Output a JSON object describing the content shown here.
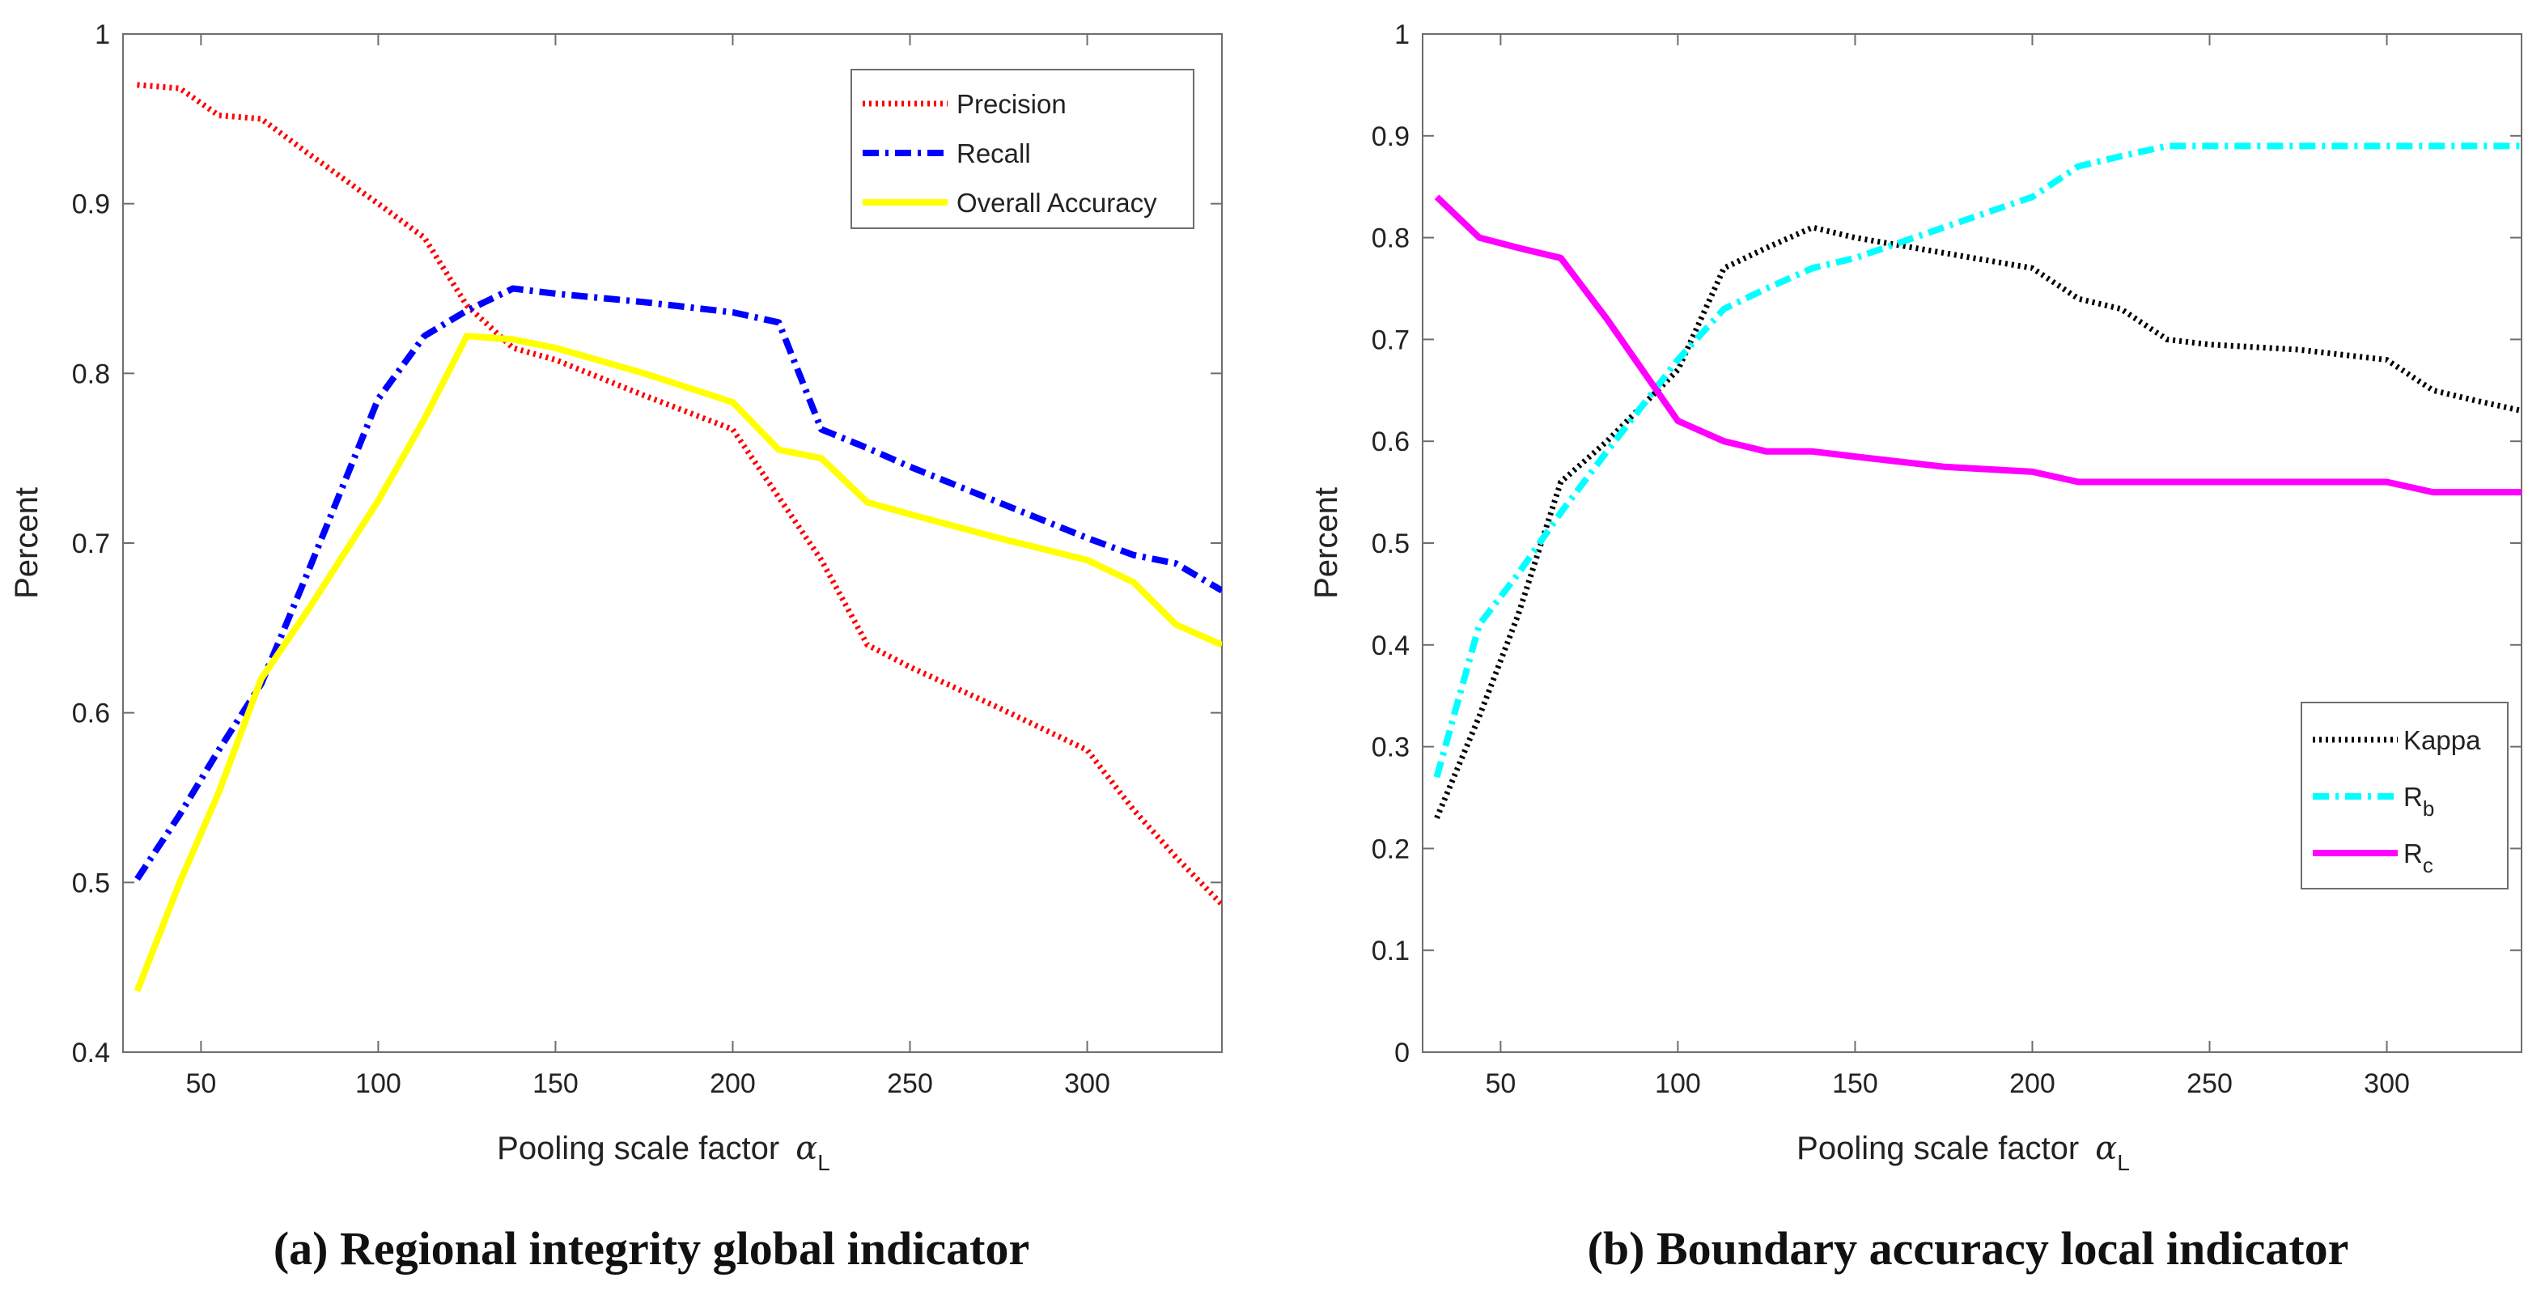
{
  "chart_data": [
    {
      "type": "line",
      "caption": "(a) Regional integrity global indicator",
      "xlabel": "Pooling scale factor",
      "xlabel_symbol": "α",
      "xlabel_sub": "L",
      "ylabel": "Percent",
      "xlim": [
        28,
        338
      ],
      "ylim": [
        0.4,
        1.0
      ],
      "xticks": [
        50,
        100,
        150,
        200,
        250,
        300
      ],
      "xtick_labels": [
        "50",
        "100",
        "150",
        "200",
        "250",
        "300"
      ],
      "yticks": [
        0.4,
        0.5,
        0.6,
        0.7,
        0.8,
        0.9,
        1.0
      ],
      "ytick_labels": [
        "0.4",
        "0.5",
        "0.6",
        "0.7",
        "0.8",
        "0.9",
        "1"
      ],
      "legend_position": "top-right",
      "series": [
        {
          "name": "Precision",
          "name_sub": "",
          "color": "#ff0000",
          "style": "dotted",
          "x": [
            32,
            44,
            55,
            67,
            80,
            100,
            113,
            125,
            138,
            150,
            175,
            200,
            213,
            225,
            238,
            250,
            275,
            300,
            313,
            325,
            338
          ],
          "y": [
            0.97,
            0.968,
            0.952,
            0.95,
            0.93,
            0.9,
            0.88,
            0.84,
            0.815,
            0.808,
            0.787,
            0.767,
            0.727,
            0.69,
            0.64,
            0.627,
            0.603,
            0.578,
            0.543,
            0.515,
            0.487
          ]
        },
        {
          "name": "Recall",
          "name_sub": "",
          "color": "#0000ff",
          "style": "dashdot",
          "x": [
            32,
            44,
            55,
            67,
            80,
            100,
            113,
            125,
            138,
            150,
            175,
            200,
            213,
            225,
            238,
            250,
            275,
            300,
            313,
            325,
            338
          ],
          "y": [
            0.502,
            0.54,
            0.578,
            0.617,
            0.682,
            0.785,
            0.822,
            0.837,
            0.85,
            0.847,
            0.842,
            0.836,
            0.83,
            0.767,
            0.756,
            0.745,
            0.724,
            0.703,
            0.693,
            0.688,
            0.672
          ]
        },
        {
          "name": "Overall Accuracy",
          "name_sub": "",
          "color": "#ffff00",
          "style": "solid",
          "x": [
            32,
            44,
            55,
            67,
            80,
            100,
            113,
            125,
            138,
            150,
            175,
            200,
            213,
            225,
            238,
            250,
            275,
            300,
            313,
            325,
            338
          ],
          "y": [
            0.436,
            0.5,
            0.553,
            0.62,
            0.66,
            0.725,
            0.773,
            0.822,
            0.82,
            0.815,
            0.8,
            0.783,
            0.755,
            0.75,
            0.724,
            0.717,
            0.703,
            0.69,
            0.677,
            0.652,
            0.64
          ]
        }
      ]
    },
    {
      "type": "line",
      "caption": "(b) Boundary accuracy local indicator",
      "xlabel": "Pooling scale factor",
      "xlabel_symbol": "α",
      "xlabel_sub": "L",
      "ylabel": "Percent",
      "xlim": [
        28,
        338
      ],
      "ylim": [
        0,
        1.0
      ],
      "xticks": [
        50,
        100,
        150,
        200,
        250,
        300
      ],
      "xtick_labels": [
        "50",
        "100",
        "150",
        "200",
        "250",
        "300"
      ],
      "yticks": [
        0,
        0.1,
        0.2,
        0.3,
        0.4,
        0.5,
        0.6,
        0.7,
        0.8,
        0.9,
        1.0
      ],
      "ytick_labels": [
        "0",
        "0.1",
        "0.2",
        "0.3",
        "0.4",
        "0.5",
        "0.6",
        "0.7",
        "0.8",
        "0.9",
        "1"
      ],
      "legend_position": "bottom-right",
      "series": [
        {
          "name": "Kappa",
          "name_sub": "",
          "color": "#000000",
          "style": "dotted",
          "x": [
            32,
            44,
            55,
            67,
            80,
            100,
            113,
            125,
            138,
            150,
            175,
            200,
            213,
            225,
            238,
            250,
            275,
            300,
            313,
            325,
            338
          ],
          "y": [
            0.23,
            0.33,
            0.43,
            0.56,
            0.6,
            0.67,
            0.77,
            0.79,
            0.81,
            0.8,
            0.785,
            0.77,
            0.74,
            0.73,
            0.7,
            0.695,
            0.69,
            0.68,
            0.65,
            0.64,
            0.63
          ]
        },
        {
          "name": "R",
          "name_sub": "b",
          "color": "#00ffff",
          "style": "dashdot",
          "x": [
            32,
            44,
            55,
            67,
            80,
            100,
            113,
            125,
            138,
            150,
            175,
            200,
            213,
            225,
            238,
            250,
            275,
            300,
            313,
            325,
            338
          ],
          "y": [
            0.27,
            0.42,
            0.47,
            0.53,
            0.59,
            0.68,
            0.73,
            0.75,
            0.77,
            0.78,
            0.81,
            0.84,
            0.87,
            0.88,
            0.89,
            0.89,
            0.89,
            0.89,
            0.89,
            0.89,
            0.89
          ]
        },
        {
          "name": "R",
          "name_sub": "c",
          "color": "#ff00ff",
          "style": "solid",
          "x": [
            32,
            44,
            55,
            67,
            80,
            100,
            113,
            125,
            138,
            150,
            175,
            200,
            213,
            225,
            238,
            250,
            275,
            300,
            313,
            325,
            338
          ],
          "y": [
            0.84,
            0.8,
            0.79,
            0.78,
            0.72,
            0.62,
            0.6,
            0.59,
            0.59,
            0.585,
            0.575,
            0.57,
            0.56,
            0.56,
            0.56,
            0.56,
            0.56,
            0.56,
            0.55,
            0.55,
            0.55
          ]
        }
      ]
    }
  ]
}
